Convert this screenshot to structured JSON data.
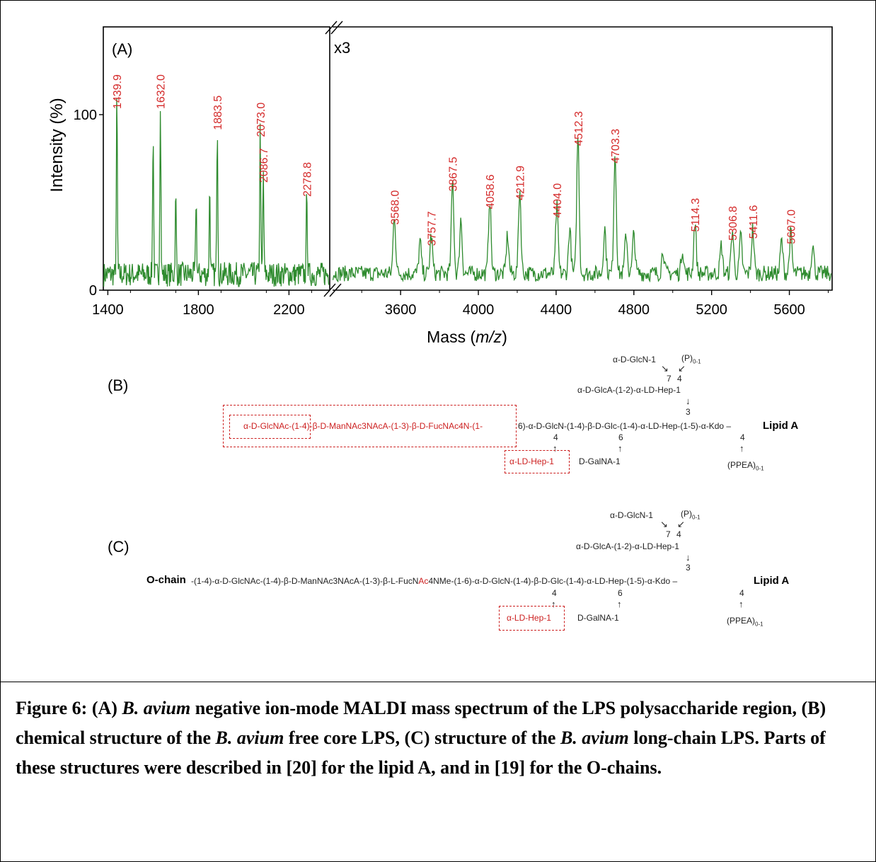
{
  "chart_data": {
    "type": "line",
    "panel_label": "(A)",
    "scale_note": "x3",
    "xlabel_main": "Mass (",
    "xlabel_italic": "m/z",
    "xlabel_end": ")",
    "ylabel": "Intensity (%)",
    "y_ticks": [
      "0",
      "100"
    ],
    "ylim": [
      0,
      150
    ],
    "left_xlim": [
      1380,
      2380
    ],
    "right_xlim": [
      3250,
      5820
    ],
    "x_ticks_left": [
      "1400",
      "1800",
      "2200"
    ],
    "x_ticks_right": [
      "3600",
      "4000",
      "4400",
      "4800",
      "5200",
      "5600"
    ],
    "series": [
      {
        "color": "#2e8b2e",
        "left_peaks": [
          [
            1439.9,
            100
          ],
          [
            1600,
            82
          ],
          [
            1632.0,
            100
          ],
          [
            1700,
            45
          ],
          [
            1790,
            44
          ],
          [
            1850,
            50
          ],
          [
            1883.5,
            88
          ],
          [
            2073.0,
            84
          ],
          [
            2086.7,
            58
          ],
          [
            2278.8,
            50
          ]
        ],
        "right_peaks": [
          [
            3568.0,
            34
          ],
          [
            3700,
            18
          ],
          [
            3757.7,
            22
          ],
          [
            3867.5,
            53
          ],
          [
            3910,
            31
          ],
          [
            4058.6,
            43
          ],
          [
            4150,
            22
          ],
          [
            4212.9,
            48
          ],
          [
            4404.0,
            38
          ],
          [
            4470,
            26
          ],
          [
            4512.3,
            79
          ],
          [
            4650,
            26
          ],
          [
            4703.3,
            69
          ],
          [
            4760,
            23
          ],
          [
            4800,
            23
          ],
          [
            4950,
            14
          ],
          [
            5050,
            14
          ],
          [
            5114.3,
            30
          ],
          [
            5250,
            16
          ],
          [
            5306.8,
            25
          ],
          [
            5350,
            21
          ],
          [
            5411.6,
            26
          ],
          [
            5560,
            19
          ],
          [
            5607.0,
            23
          ],
          [
            5720,
            17
          ]
        ]
      }
    ],
    "peak_labels": [
      "1439.9",
      "1632.0",
      "1883.5",
      "2073.0",
      "2086.7",
      "2278.8",
      "3568.0",
      "3757.7",
      "3867.5",
      "4058.6",
      "4212.9",
      "4404.0",
      "4512.3",
      "4703.3",
      "5114.3",
      "5306.8",
      "5411.6",
      "5607.0"
    ],
    "peak_label_color": "#d42a2a"
  },
  "structure_b": {
    "label": "(B)",
    "top_glcn": "α-D-GlcN-1",
    "top_p": "(P)",
    "top_p_sub": "0-1",
    "pos_7": "7",
    "pos_4_top": "4",
    "glca_chain": "α-D-GlcA-(1-2)-α-LD-Hep-1",
    "pos_3": "3",
    "red_chain": "α-D-GlcNAc-(1-4)-β-D-ManNAc3NAcA-(1-3)-β-D-FucNAc4N-(1-",
    "black_chain": "6)-α-D-GlcN-(1-4)-β-D-Glc-(1-4)-α-LD-Hep-(1-5)-α-Kdo –",
    "lipid_a": "Lipid A",
    "pos_4_a": "4",
    "pos_6": "6",
    "pos_4_b": "4",
    "hep_box": "α-LD-Hep-1",
    "galna": "D-GalNA-1",
    "ppea": "(PPEA)",
    "ppea_sub": "0-1"
  },
  "structure_c": {
    "label": "(C)",
    "top_glcn": "α-D-GlcN-1",
    "top_p": "(P)",
    "top_p_sub": "0-1",
    "pos_7": "7",
    "pos_4_top": "4",
    "glca_chain": "α-D-GlcA-(1-2)-α-LD-Hep-1",
    "pos_3": "3",
    "o_chain": "O-chain",
    "chain_part1": "-(1-4)-α-D-GlcNAc-(1-4)-β-D-ManNAc3NAcA-(1-3)-β-L-FucN",
    "chain_ac": "Ac",
    "chain_part2": "4NMe-(1-6)-α-D-GlcN-(1-4)-β-D-Glc-(1-4)-α-LD-Hep-(1-5)-α-Kdo –",
    "lipid_a": "Lipid A",
    "pos_4_a": "4",
    "pos_6": "6",
    "pos_4_b": "4",
    "hep_box": "α-LD-Hep-1",
    "galna": "D-GalNA-1",
    "ppea": "(PPEA)",
    "ppea_sub": "0-1"
  },
  "caption": {
    "t1": "Figure 6: (A) ",
    "i1": "B. avium",
    "t2": " negative ion-mode MALDI mass spectrum of the LPS polysaccharide region, (B) chemical structure of the ",
    "i2": "B. avium",
    "t3": " free core LPS, (C) structure of the ",
    "i3": "B. avium",
    "t4": " long-chain LPS. Parts of these structures were described in [20] for the lipid A, and in [19] for the O-chains."
  }
}
